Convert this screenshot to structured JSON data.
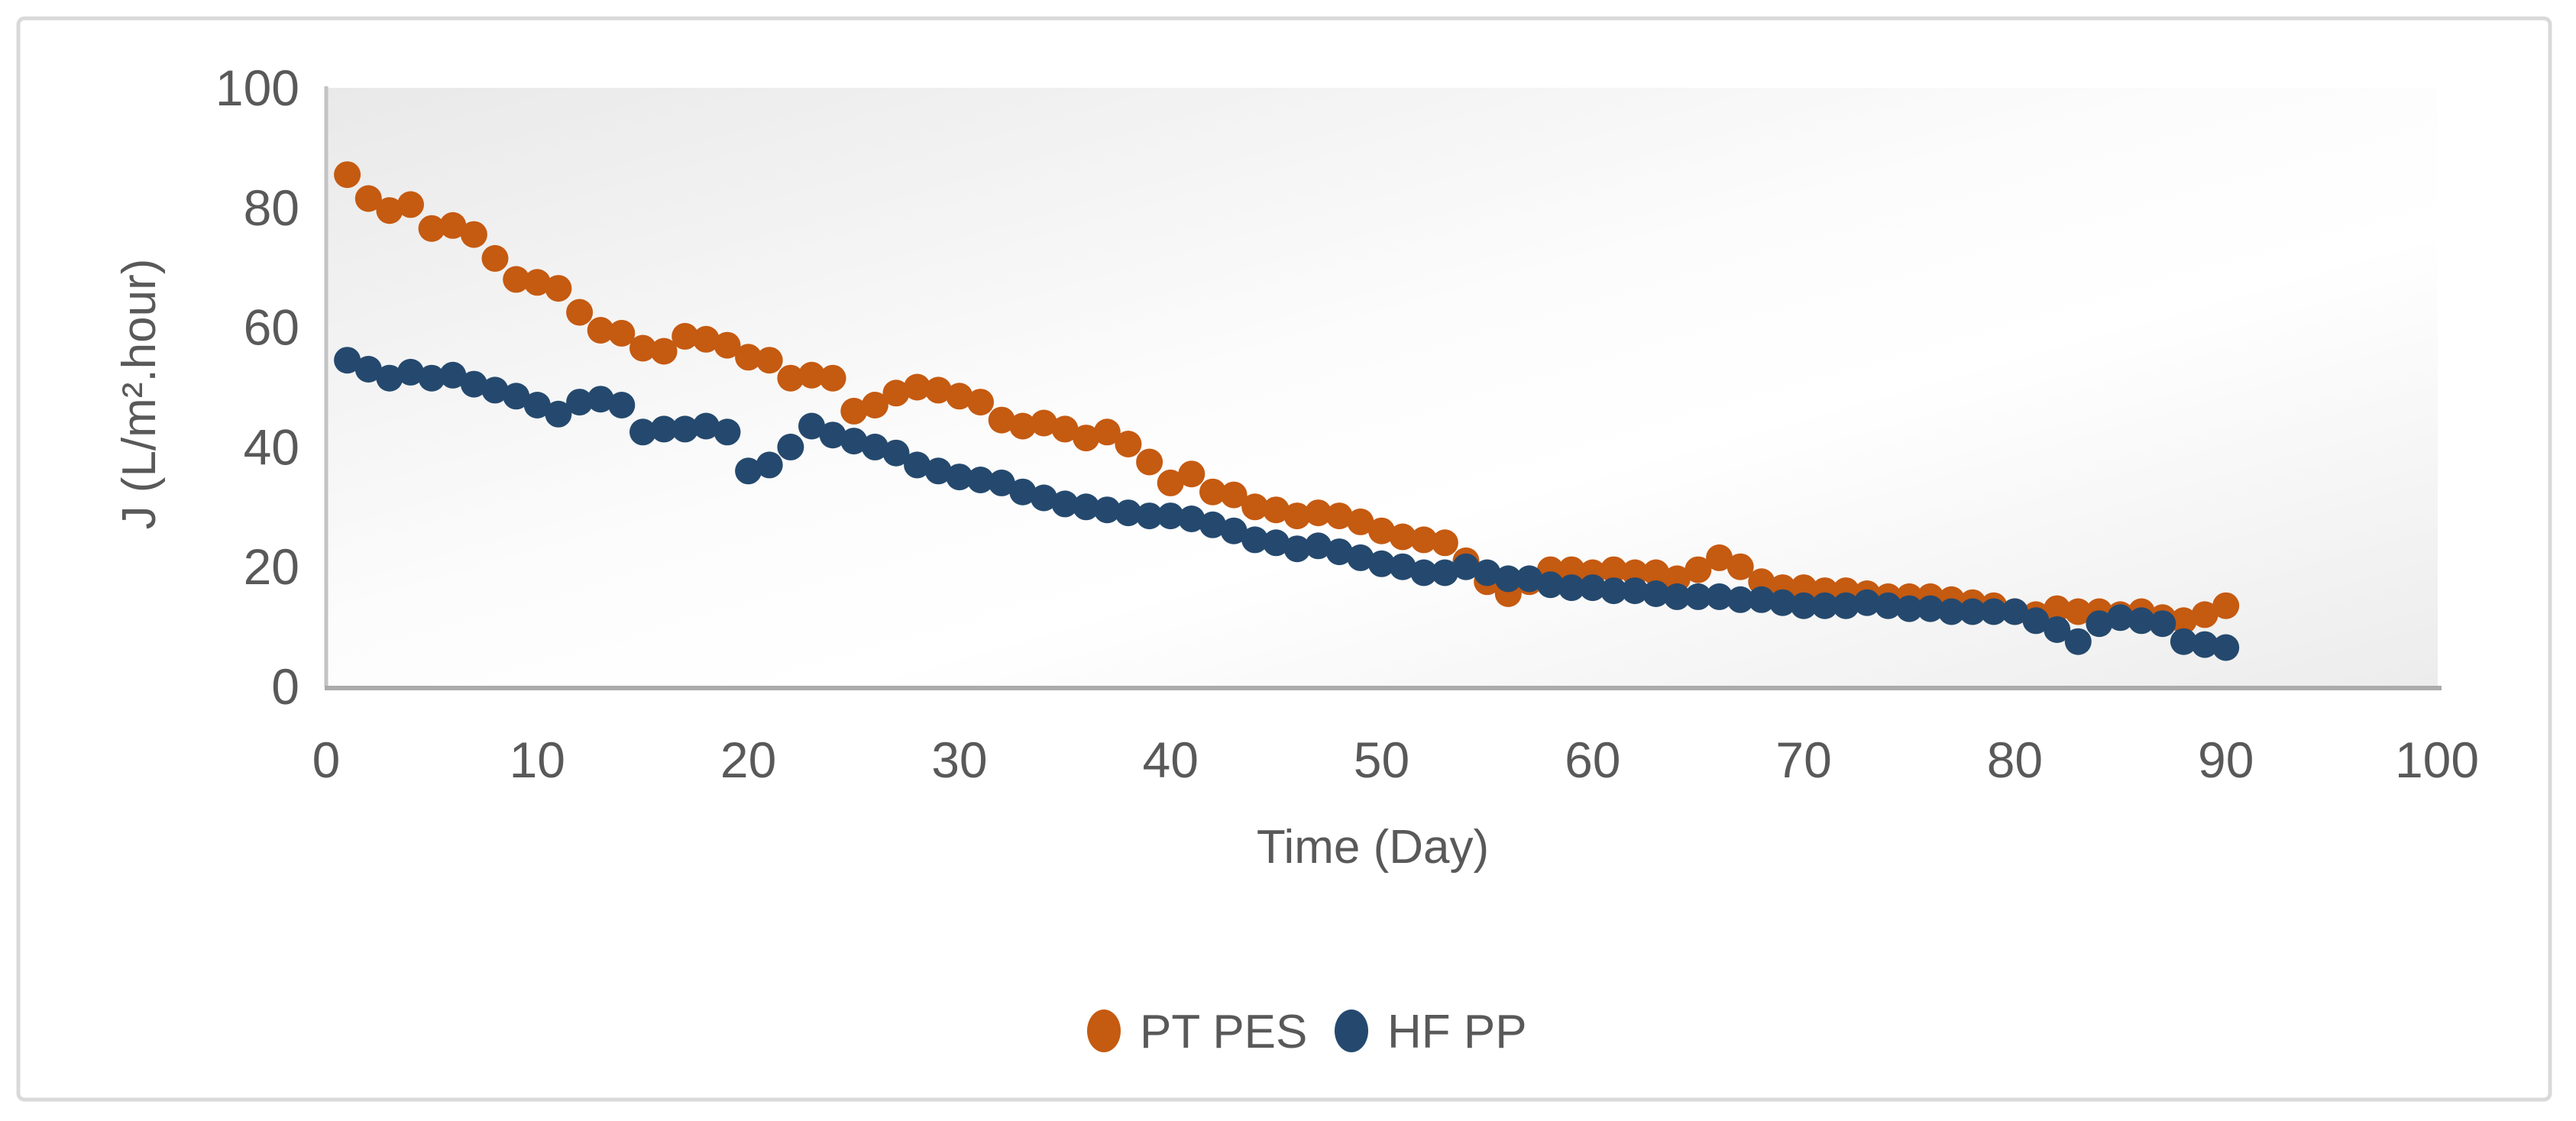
{
  "figure": {
    "background_color": "#FFFFFF",
    "border_color": "#D9D9D9",
    "plot_gradient_top_left": "#E9E9E9",
    "plot_gradient_middle": "#FFFFFF",
    "plot_gradient_bottom_right": "#ECECEC",
    "x_axis_line_color": "#ABABAB",
    "y_axis_line_color": "#C3C3C3",
    "text_color": "#595959"
  },
  "chart_data": {
    "type": "scatter",
    "title": "",
    "xlabel": "Time (Day)",
    "ylabel": "J (L/m².hour)",
    "xlim": [
      0,
      100
    ],
    "ylim": [
      0,
      100
    ],
    "x_ticks": [
      0,
      10,
      20,
      30,
      40,
      50,
      60,
      70,
      80,
      90,
      100
    ],
    "y_ticks": [
      0,
      20,
      40,
      60,
      80,
      100
    ],
    "grid": false,
    "legend_position": "bottom",
    "marker": "circle",
    "x": [
      1,
      2,
      3,
      4,
      5,
      6,
      7,
      8,
      9,
      10,
      11,
      12,
      13,
      14,
      15,
      16,
      17,
      18,
      19,
      20,
      21,
      22,
      23,
      24,
      25,
      26,
      27,
      28,
      29,
      30,
      31,
      32,
      33,
      34,
      35,
      36,
      37,
      38,
      39,
      40,
      41,
      42,
      43,
      44,
      45,
      46,
      47,
      48,
      49,
      50,
      51,
      52,
      53,
      54,
      55,
      56,
      57,
      58,
      59,
      60,
      61,
      62,
      63,
      64,
      65,
      66,
      67,
      68,
      69,
      70,
      71,
      72,
      73,
      74,
      75,
      76,
      77,
      78,
      79,
      80,
      81,
      82,
      83,
      84,
      85,
      86,
      87,
      88,
      89,
      90
    ],
    "series": [
      {
        "name": "PT PES",
        "color": "#C55A11",
        "values": [
          85.5,
          81.5,
          79.5,
          80.5,
          76.5,
          77,
          75.5,
          71.5,
          68,
          67.5,
          66.5,
          62.5,
          59.5,
          59,
          56.5,
          56,
          58.5,
          58,
          57,
          55,
          54.5,
          51.5,
          52,
          51.5,
          46,
          47,
          49,
          50,
          49.5,
          48.5,
          47.5,
          44.5,
          43.5,
          44,
          43,
          41.5,
          42.5,
          40.5,
          37.5,
          34,
          35.5,
          32.5,
          32,
          30,
          29.5,
          28.5,
          29,
          28.5,
          27.5,
          26,
          25,
          24.5,
          24,
          21,
          17.5,
          15.5,
          17.5,
          19.5,
          19.5,
          19,
          19.5,
          19,
          19,
          18,
          19.5,
          21.5,
          20,
          17.5,
          16.5,
          16.5,
          16,
          16,
          15.5,
          15,
          15,
          15,
          14.5,
          14,
          13.5,
          12.5,
          12,
          13,
          12.5,
          12.5,
          12,
          12.5,
          11.5,
          11,
          12,
          13.5
        ]
      },
      {
        "name": "HF PP",
        "color": "#25496E",
        "values": [
          54.5,
          53,
          51.5,
          52.5,
          51.5,
          52,
          50.5,
          49.5,
          48.5,
          47,
          45.5,
          47.5,
          48,
          47,
          42.5,
          43,
          43,
          43.5,
          42.5,
          36,
          37,
          40,
          43.5,
          42,
          41,
          40,
          39,
          37,
          36,
          35,
          34.5,
          34,
          32.5,
          31.5,
          30.5,
          30,
          29.5,
          29,
          28.5,
          28.5,
          28,
          27,
          26,
          24.5,
          24,
          23,
          23.5,
          22.5,
          21.5,
          20.5,
          20,
          19,
          19,
          20,
          19,
          18,
          18,
          17,
          16.5,
          16.5,
          16,
          16,
          15.5,
          15,
          15,
          15,
          14.5,
          14.5,
          14,
          13.5,
          13.5,
          13.5,
          14,
          13.5,
          13,
          13,
          12.5,
          12.5,
          12.5,
          12.5,
          11,
          9.5,
          7.5,
          10.5,
          11.5,
          11,
          10.5,
          7.5,
          7,
          6.5
        ]
      }
    ]
  },
  "legend": {
    "items": [
      {
        "label": "PT PES",
        "color": "#C55A11"
      },
      {
        "label": "HF PP",
        "color": "#25496E"
      }
    ]
  }
}
